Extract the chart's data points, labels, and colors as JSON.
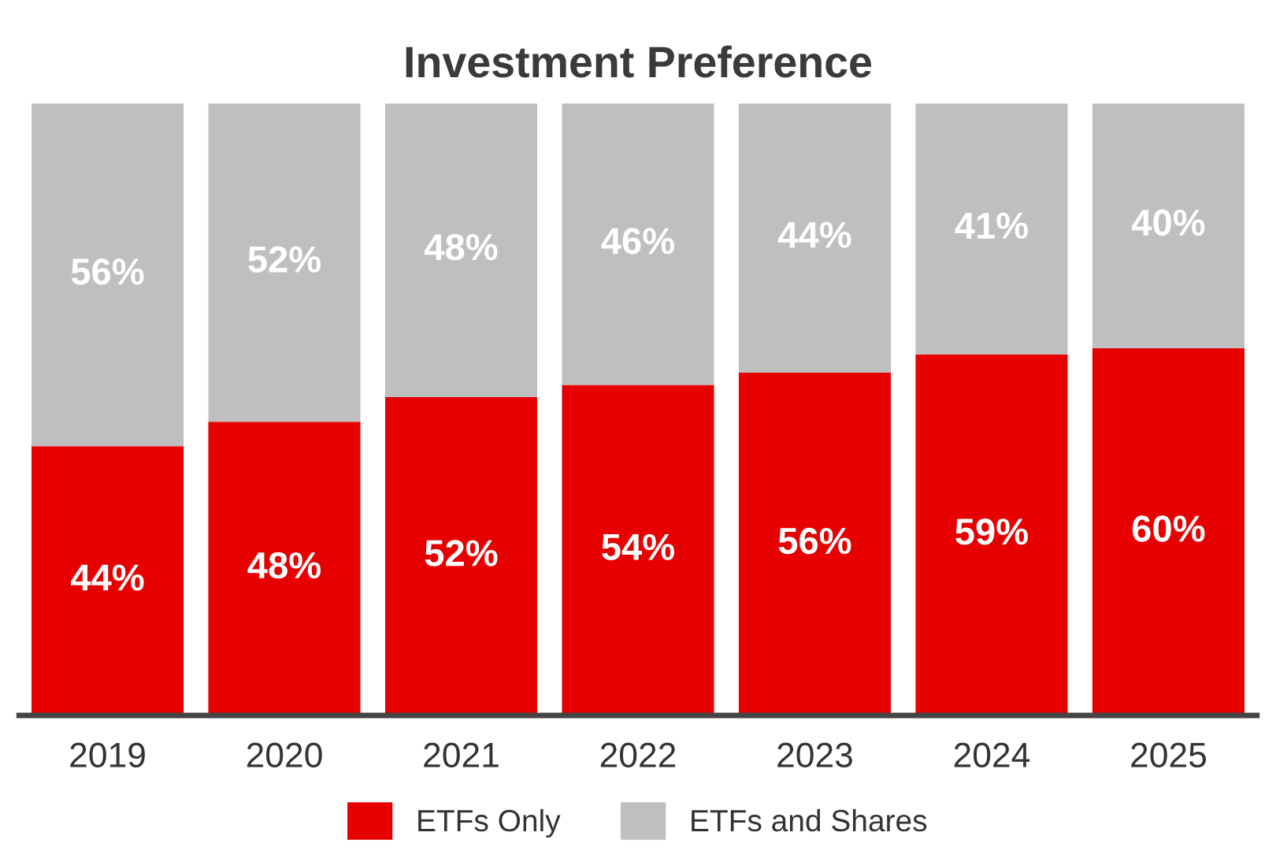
{
  "chart_data": {
    "type": "bar",
    "title": "Investment Preference",
    "stacked": true,
    "categories": [
      "2019",
      "2020",
      "2021",
      "2022",
      "2023",
      "2024",
      "2025"
    ],
    "series": [
      {
        "name": "ETFs Only",
        "color": "#e60000",
        "values": [
          44,
          48,
          52,
          54,
          56,
          59,
          60
        ],
        "value_labels": [
          "44%",
          "48%",
          "52%",
          "54%",
          "56%",
          "59%",
          "60%"
        ]
      },
      {
        "name": "ETFs and Shares",
        "color": "#bfbfbf",
        "values": [
          56,
          52,
          48,
          46,
          44,
          41,
          40
        ],
        "value_labels": [
          "56%",
          "52%",
          "48%",
          "46%",
          "44%",
          "41%",
          "40%"
        ]
      }
    ],
    "ylim": [
      0,
      100
    ],
    "tick_labels": "x",
    "grid": false,
    "legend": "bottom"
  }
}
